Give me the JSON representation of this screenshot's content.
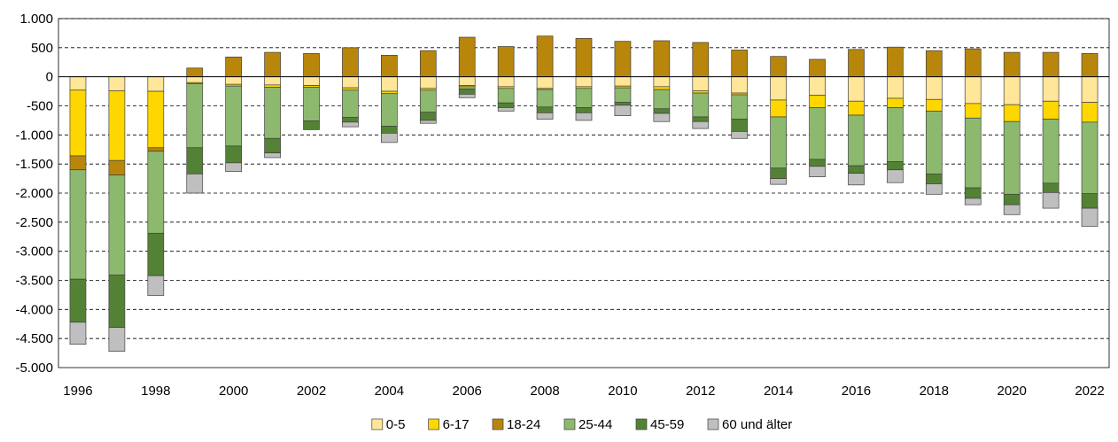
{
  "chart_data": {
    "type": "bar",
    "stacked": true,
    "title": "",
    "xlabel": "",
    "ylabel": "",
    "ylim": [
      -5000,
      1000
    ],
    "y_ticks": [
      1000,
      500,
      0,
      -500,
      -1000,
      -1500,
      -2000,
      -2500,
      -3000,
      -3500,
      -4000,
      -4500,
      -5000
    ],
    "y_tick_labels": [
      "1.000",
      "500",
      "0",
      "-500",
      "-1.000",
      "-1.500",
      "-2.000",
      "-2.500",
      "-3.000",
      "-3.500",
      "-4.000",
      "-4.500",
      "-5.000"
    ],
    "grid": "horizontal dashed",
    "legend_position": "bottom",
    "categories": [
      1996,
      1997,
      1998,
      1999,
      2000,
      2001,
      2002,
      2003,
      2004,
      2005,
      2006,
      2007,
      2008,
      2009,
      2010,
      2011,
      2012,
      2013,
      2014,
      2015,
      2016,
      2017,
      2018,
      2019,
      2020,
      2021,
      2022
    ],
    "x_tick_labels": [
      "1996",
      "1998",
      "2000",
      "2002",
      "2004",
      "2006",
      "2008",
      "2010",
      "2012",
      "2014",
      "2016",
      "2018",
      "2020",
      "2022"
    ],
    "series": [
      {
        "name": "0-5",
        "color": "#FFE699",
        "values": [
          -230,
          -240,
          -250,
          -100,
          -130,
          -140,
          -150,
          -190,
          -250,
          -200,
          -150,
          -170,
          -200,
          -170,
          -160,
          -170,
          -240,
          -280,
          -400,
          -320,
          -420,
          -370,
          -390,
          -460,
          -480,
          -420,
          -440
        ]
      },
      {
        "name": "6-17",
        "color": "#FFD700",
        "values": [
          -1130,
          -1200,
          -970,
          -20,
          -30,
          -40,
          -30,
          -40,
          -40,
          -30,
          -20,
          -30,
          -20,
          -30,
          -30,
          -50,
          -40,
          -30,
          -290,
          -210,
          -240,
          -160,
          -200,
          -250,
          -290,
          -310,
          -340
        ]
      },
      {
        "name": "18-24",
        "color": "#B8860B",
        "values": [
          -240,
          -250,
          -60,
          150,
          340,
          420,
          400,
          500,
          370,
          450,
          680,
          520,
          700,
          660,
          610,
          620,
          590,
          460,
          350,
          300,
          470,
          510,
          450,
          480,
          420,
          420,
          400
        ]
      },
      {
        "name": "25-44",
        "color": "#8DB96E",
        "values": [
          -1880,
          -1720,
          -1410,
          -1100,
          -1030,
          -880,
          -580,
          -470,
          -560,
          -380,
          -40,
          -250,
          -300,
          -330,
          -250,
          -330,
          -410,
          -420,
          -880,
          -890,
          -870,
          -930,
          -1080,
          -1200,
          -1250,
          -1100,
          -1230
        ]
      },
      {
        "name": "45-59",
        "color": "#548235",
        "values": [
          -740,
          -900,
          -730,
          -450,
          -290,
          -250,
          -150,
          -80,
          -120,
          -140,
          -90,
          -80,
          -100,
          -90,
          -50,
          -80,
          -80,
          -210,
          -180,
          -120,
          -130,
          -140,
          -170,
          -180,
          -180,
          -160,
          -250
        ]
      },
      {
        "name": "60 und älter",
        "color": "#BFBFBF",
        "values": [
          -380,
          -410,
          -340,
          -330,
          -150,
          -80,
          0,
          -80,
          -160,
          -50,
          -60,
          -60,
          -110,
          -130,
          -180,
          -140,
          -120,
          -120,
          -100,
          -180,
          -200,
          -220,
          -180,
          -110,
          -170,
          -270,
          -310
        ]
      }
    ]
  }
}
